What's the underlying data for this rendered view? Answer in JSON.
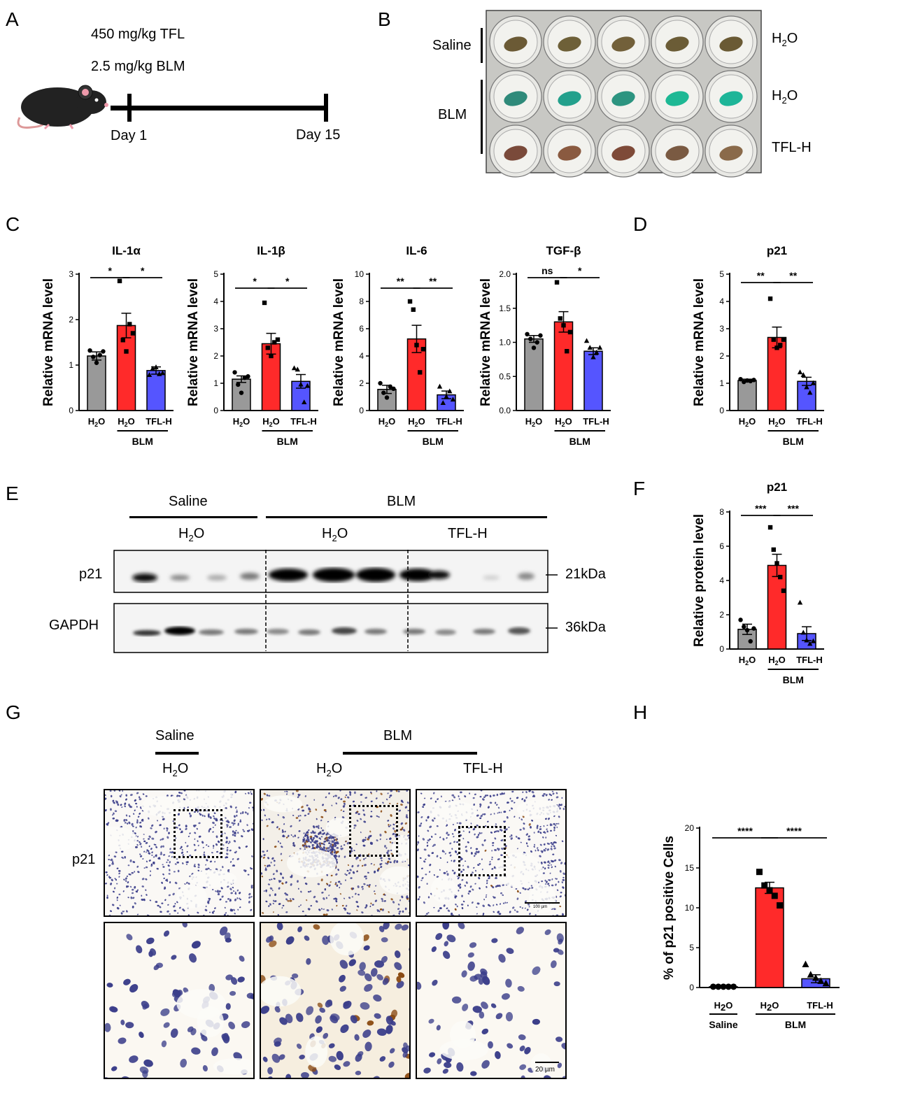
{
  "panels": {
    "A": "A",
    "B": "B",
    "C": "C",
    "D": "D",
    "E": "E",
    "F": "F",
    "G": "G",
    "H": "H"
  },
  "panelA": {
    "dose1": "450 mg/kg TFL",
    "dose2": "2.5 mg/kg BLM",
    "day_start": "Day 1",
    "day_end": "Day 15"
  },
  "panelB": {
    "saline": "Saline",
    "blm": "BLM",
    "row1": "H2O",
    "row2": "H2O",
    "row3": "TFL-H"
  },
  "panelE": {
    "saline": "Saline",
    "blm": "BLM",
    "h2o_a": "H2O",
    "h2o_b": "H2O",
    "tflh": "TFL-H",
    "p21": "p21",
    "gapdh": "GAPDH",
    "kda21": "21kDa",
    "kda36": "36kDa"
  },
  "panelG": {
    "saline": "Saline",
    "blm": "BLM",
    "h2o_a": "H2O",
    "h2o_b": "H2O",
    "tflh": "TFL-H",
    "p21": "p21",
    "scale1": "100 µm",
    "scale2": "20 µm"
  },
  "colors": {
    "h2o": "#999999",
    "blm": "#ff2a2a",
    "tfl": "#5555ff"
  },
  "chart_data": [
    {
      "id": "il1a",
      "type": "bar",
      "title": "IL-1α",
      "ylabel": "Relative mRNA level",
      "ylim": [
        0,
        3
      ],
      "yticks": [
        0,
        1,
        2,
        3
      ],
      "categories": [
        "H2O",
        "H2O",
        "TFL-H"
      ],
      "group": "BLM",
      "values": [
        1.2,
        1.87,
        0.88
      ],
      "errors": [
        0.09,
        0.27,
        0.08
      ],
      "points": [
        [
          1.32,
          1.18,
          1.05,
          1.22,
          1.3
        ],
        [
          2.85,
          1.55,
          1.3,
          1.9,
          1.7
        ],
        [
          0.78,
          0.92,
          0.95,
          0.8,
          0.82
        ]
      ],
      "sig": [
        {
          "from": 0,
          "to": 1,
          "label": "*"
        },
        {
          "from": 1,
          "to": 2,
          "label": "*"
        }
      ]
    },
    {
      "id": "il1b",
      "type": "bar",
      "title": "IL-1β",
      "ylabel": "Relative mRNA level",
      "ylim": [
        0,
        5
      ],
      "yticks": [
        0,
        1,
        2,
        3,
        4,
        5
      ],
      "categories": [
        "H2O",
        "H2O",
        "TFL-H"
      ],
      "group": "BLM",
      "values": [
        1.15,
        2.45,
        1.07
      ],
      "errors": [
        0.12,
        0.38,
        0.25
      ],
      "points": [
        [
          1.4,
          0.95,
          0.65,
          1.2,
          1.25
        ],
        [
          3.95,
          2.3,
          2.0,
          2.5,
          2.6
        ],
        [
          1.55,
          1.5,
          0.95,
          0.3,
          0.9
        ]
      ],
      "sig": [
        {
          "from": 0,
          "to": 1,
          "label": "*"
        },
        {
          "from": 1,
          "to": 2,
          "label": "*"
        }
      ]
    },
    {
      "id": "il6",
      "type": "bar",
      "title": "IL-6",
      "ylabel": "Relative mRNA level",
      "ylim": [
        0,
        10
      ],
      "yticks": [
        0,
        2,
        4,
        6,
        8,
        10
      ],
      "categories": [
        "H2O",
        "H2O",
        "TFL-H"
      ],
      "group": "BLM",
      "values": [
        1.55,
        5.25,
        1.15
      ],
      "errors": [
        0.3,
        1.0,
        0.28
      ],
      "points": [
        [
          2.0,
          1.3,
          0.95,
          1.75,
          1.6
        ],
        [
          8.0,
          7.4,
          4.8,
          2.8,
          4.5
        ],
        [
          1.75,
          0.55,
          1.0,
          1.4,
          0.8
        ]
      ],
      "sig": [
        {
          "from": 0,
          "to": 1,
          "label": "**"
        },
        {
          "from": 1,
          "to": 2,
          "label": "**"
        }
      ]
    },
    {
      "id": "tgfb",
      "type": "bar",
      "title": "TGF-β",
      "ylabel": "Relative mRNA level",
      "ylim": [
        0,
        2
      ],
      "yticks": [
        "0.0",
        "0.5",
        "1.0",
        "1.5",
        "2.0"
      ],
      "categories": [
        "H2O",
        "H2O",
        "TFL-H"
      ],
      "group": "BLM",
      "values": [
        1.05,
        1.3,
        0.87
      ],
      "errors": [
        0.05,
        0.15,
        0.05
      ],
      "points": [
        [
          1.12,
          1.05,
          0.92,
          1.0,
          1.1
        ],
        [
          1.88,
          1.35,
          1.25,
          0.87,
          1.15
        ],
        [
          1.02,
          0.92,
          0.78,
          0.85,
          0.92
        ]
      ],
      "sig": [
        {
          "from": 0,
          "to": 1,
          "label": "ns"
        },
        {
          "from": 1,
          "to": 2,
          "label": "*"
        }
      ]
    },
    {
      "id": "p21mrna",
      "type": "bar",
      "title": "p21",
      "ylabel": "Relative mRNA level",
      "ylim": [
        0,
        5
      ],
      "yticks": [
        0,
        1,
        2,
        3,
        4,
        5
      ],
      "categories": [
        "H2O",
        "H2O",
        "TFL-H"
      ],
      "group": "BLM",
      "values": [
        1.1,
        2.68,
        1.07
      ],
      "errors": [
        0.05,
        0.38,
        0.15
      ],
      "points": [
        [
          1.15,
          1.05,
          1.1,
          1.08,
          1.12
        ],
        [
          4.1,
          2.6,
          2.3,
          2.4,
          2.6
        ],
        [
          1.4,
          1.3,
          0.85,
          0.65,
          1.0
        ]
      ],
      "sig": [
        {
          "from": 0,
          "to": 1,
          "label": "**"
        },
        {
          "from": 1,
          "to": 2,
          "label": "**"
        }
      ]
    },
    {
      "id": "p21prot",
      "type": "bar",
      "title": "p21",
      "ylabel": "Relative protein level",
      "ylim": [
        0,
        8
      ],
      "yticks": [
        0,
        2,
        4,
        6,
        8
      ],
      "categories": [
        "H2O",
        "H2O",
        "TFL-H"
      ],
      "group": "BLM",
      "values": [
        1.15,
        4.88,
        0.9
      ],
      "errors": [
        0.3,
        0.65,
        0.4
      ],
      "points": [
        [
          1.7,
          1.3,
          1.1,
          0.45,
          1.2
        ],
        [
          7.1,
          5.8,
          5.0,
          4.2,
          3.4
        ],
        [
          2.7,
          0.95,
          0.5,
          0.3,
          0.45
        ]
      ],
      "sig": [
        {
          "from": 0,
          "to": 1,
          "label": "***"
        },
        {
          "from": 1,
          "to": 2,
          "label": "***"
        }
      ]
    },
    {
      "id": "p21pos",
      "type": "bar",
      "title": "",
      "ylabel": "% of p21 positive Cells",
      "ylim": [
        0,
        20
      ],
      "yticks": [
        0,
        5,
        10,
        15,
        20
      ],
      "categories": [
        "H2O",
        "H2O",
        "TFL-H"
      ],
      "groups": [
        "Saline",
        "BLM"
      ],
      "values": [
        0.1,
        12.5,
        1.1
      ],
      "errors": [
        0.05,
        0.7,
        0.5
      ],
      "points": [
        [
          0.1,
          0.1,
          0.1,
          0.1,
          0.1
        ],
        [
          14.5,
          12.8,
          12.2,
          11.5,
          10.3
        ],
        [
          2.9,
          1.6,
          1.2,
          0.8,
          0.5
        ]
      ],
      "sig": [
        {
          "from": 0,
          "to": 1,
          "label": "****"
        },
        {
          "from": 1,
          "to": 2,
          "label": "****"
        }
      ]
    }
  ]
}
